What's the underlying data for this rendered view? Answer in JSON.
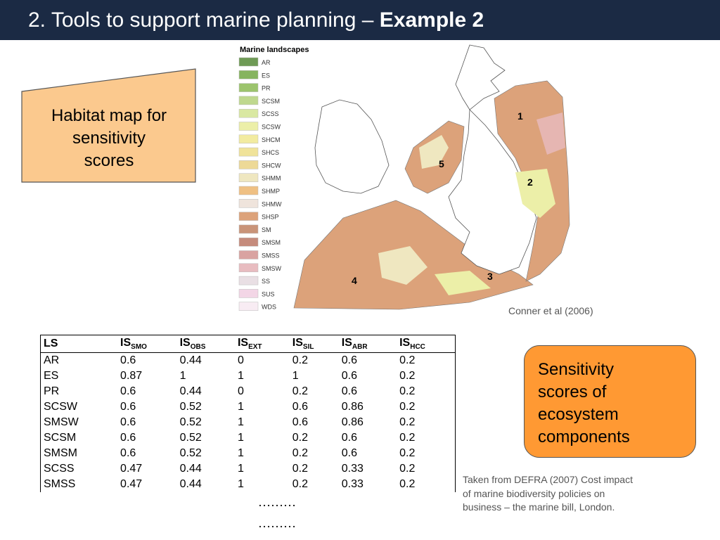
{
  "title": {
    "prefix": "2. Tools to support marine planning – ",
    "bold": "Example 2"
  },
  "callout_left": {
    "line1": "Habitat map for",
    "line2": "sensitivity",
    "line3": "scores"
  },
  "map": {
    "legend_title": "Marine landscapes",
    "legend": [
      {
        "code": "AR",
        "color": "#6e9a55"
      },
      {
        "code": "ES",
        "color": "#86b45f"
      },
      {
        "code": "PR",
        "color": "#9cc46d"
      },
      {
        "code": "SCSM",
        "color": "#bfd88e"
      },
      {
        "code": "SCSS",
        "color": "#d9e8a2"
      },
      {
        "code": "SCSW",
        "color": "#ecefa8"
      },
      {
        "code": "SHCM",
        "color": "#f2eba0"
      },
      {
        "code": "SHCS",
        "color": "#f0e39a"
      },
      {
        "code": "SHCW",
        "color": "#edd997"
      },
      {
        "code": "SHMM",
        "color": "#efe7c0"
      },
      {
        "code": "SHMP",
        "color": "#efc083"
      },
      {
        "code": "SHMW",
        "color": "#efe4dc"
      },
      {
        "code": "SHSP",
        "color": "#dca27a"
      },
      {
        "code": "SM",
        "color": "#c99479"
      },
      {
        "code": "SMSM",
        "color": "#c58b7c"
      },
      {
        "code": "SMSS",
        "color": "#d9a3a1"
      },
      {
        "code": "SMSW",
        "color": "#e8bcc0"
      },
      {
        "code": "SS",
        "color": "#e9dfe4"
      },
      {
        "code": "SUS",
        "color": "#f3d6e6"
      },
      {
        "code": "WDS",
        "color": "#f8ecf3"
      }
    ],
    "region_numbers": [
      "1",
      "2",
      "3",
      "4",
      "5"
    ]
  },
  "map_credit": "Conner et al (2006)",
  "table": {
    "headers": [
      {
        "main": "LS",
        "sub": ""
      },
      {
        "main": "IS",
        "sub": "SMO"
      },
      {
        "main": "IS",
        "sub": "OBS"
      },
      {
        "main": "IS",
        "sub": "EXT"
      },
      {
        "main": "IS",
        "sub": "SIL"
      },
      {
        "main": "IS",
        "sub": "ABR"
      },
      {
        "main": "IS",
        "sub": "HCC"
      }
    ],
    "rows": [
      [
        "AR",
        "0.6",
        "0.44",
        "0",
        "0.2",
        "0.6",
        "0.2"
      ],
      [
        "ES",
        "0.87",
        "1",
        "1",
        "1",
        "0.6",
        "0.2"
      ],
      [
        "PR",
        "0.6",
        "0.44",
        "0",
        "0.2",
        "0.6",
        "0.2"
      ],
      [
        "SCSW",
        "0.6",
        "0.52",
        "1",
        "0.6",
        "0.86",
        "0.2"
      ],
      [
        "SMSW",
        "0.6",
        "0.52",
        "1",
        "0.6",
        "0.86",
        "0.2"
      ],
      [
        "SCSM",
        "0.6",
        "0.52",
        "1",
        "0.2",
        "0.6",
        "0.2"
      ],
      [
        "SMSM",
        "0.6",
        "0.52",
        "1",
        "0.2",
        "0.6",
        "0.2"
      ],
      [
        "SCSS",
        "0.47",
        "0.44",
        "1",
        "0.2",
        "0.33",
        "0.2"
      ],
      [
        "SMSS",
        "0.47",
        "0.44",
        "1",
        "0.2",
        "0.33",
        "0.2"
      ]
    ],
    "continuation": [
      "………",
      "………"
    ]
  },
  "callout_right": {
    "line1": "Sensitivity",
    "line2": "scores of",
    "line3": "ecosystem",
    "line4": "components"
  },
  "source_note": "Taken from DEFRA (2007) Cost impact of marine biodiversity policies on business – the marine bill, London."
}
